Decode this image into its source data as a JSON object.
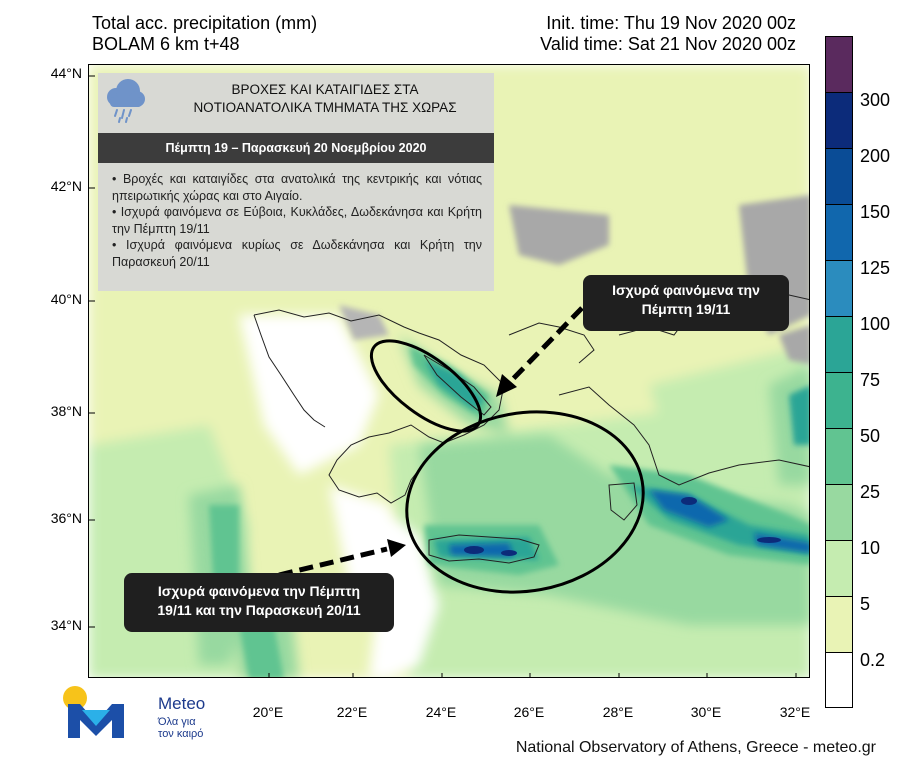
{
  "header": {
    "title_line1": "Total acc. precipitation (mm)",
    "title_line2": "BOLAM 6 km t+48",
    "init_time": "Init. time: Thu 19 Nov 2020 00z",
    "valid_time": "Valid time: Sat 21 Nov 2020 00z"
  },
  "axes": {
    "lat_labels": [
      "44°N",
      "42°N",
      "40°N",
      "38°N",
      "36°N",
      "34°N"
    ],
    "lon_labels": [
      "20°E",
      "22°E",
      "24°E",
      "26°E",
      "28°E",
      "30°E",
      "32°E"
    ]
  },
  "info_box": {
    "icon": "rain-cloud-icon",
    "title_line1": "ΒΡΟΧΕΣ ΚΑΙ ΚΑΤΑΙΓΙΔΕΣ ΣΤΑ",
    "title_line2": "ΝΟΤΙΟΑΝΑΤΟΛΙΚΑ ΤΜΗΜΑΤΑ ΤΗΣ ΧΩΡΑΣ",
    "date_banner": "Πέμπτη 19 – Παρασκευή 20 Νοεμβρίου 2020",
    "bullets": [
      "• Βροχές και καταιγίδες στα ανατολικά της κεντρικής και νότιας ηπειρωτικής χώρας και στο Αιγαίο.",
      "• Ισχυρά φαινόμενα σε Εύβοια, Κυκλάδες, Δωδεκάνησα και Κρήτη την Πέμπτη 19/11",
      "• Ισχυρά φαινόμενα κυρίως σε Δωδεκάνησα και Κρήτη την Παρασκευή 20/11"
    ]
  },
  "callouts": {
    "north_line1": "Ισχυρά φαινόμενα την",
    "north_line2": "Πέμπτη 19/11",
    "south_line1": "Ισχυρά φαινόμενα την Πέμπτη",
    "south_line2": "19/11 και την Παρασκευή 20/11"
  },
  "colorbar": {
    "labels": [
      "300",
      "200",
      "150",
      "125",
      "100",
      "75",
      "50",
      "25",
      "10",
      "5",
      "0.2"
    ],
    "colors": [
      "#5a2a5e",
      "#0c2b7a",
      "#0a4c96",
      "#1167ad",
      "#2b8cbe",
      "#2ba596",
      "#3db38f",
      "#61c491",
      "#98d9a0",
      "#c5ecb0",
      "#e9f3b5",
      "#ffffff"
    ]
  },
  "palette": {
    "sea": "#ffffff",
    "land_dry": "#e9f3b5",
    "land_gray": "#a8a8a8",
    "rain_light": "#c5ecb0",
    "rain_mid": "#98d9a0",
    "rain_green": "#61c491",
    "rain_teal": "#2ba596",
    "rain_blue": "#1167ad",
    "rain_dark": "#0c2b7a"
  },
  "logo": {
    "icon": "meteo-logo-icon",
    "name": "Meteo",
    "tagline_line1": "Όλα για",
    "tagline_line2": "τον καιρό"
  },
  "footer": {
    "credit": "National Observatory of Athens, Greece - meteo.gr"
  }
}
